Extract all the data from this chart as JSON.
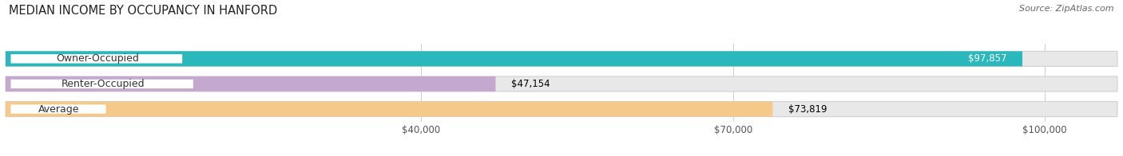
{
  "title": "MEDIAN INCOME BY OCCUPANCY IN HANFORD",
  "source": "Source: ZipAtlas.com",
  "categories": [
    "Owner-Occupied",
    "Renter-Occupied",
    "Average"
  ],
  "values": [
    97857,
    47154,
    73819
  ],
  "bar_colors": [
    "#2ab8bc",
    "#c4a8d0",
    "#f5c98a"
  ],
  "value_labels": [
    "$97,857",
    "$47,154",
    "$73,819"
  ],
  "value_label_colors": [
    "white",
    "black",
    "black"
  ],
  "xlim": [
    0,
    107000
  ],
  "xticks": [
    40000,
    70000,
    100000
  ],
  "xtick_labels": [
    "$40,000",
    "$70,000",
    "$100,000"
  ],
  "title_fontsize": 10.5,
  "source_fontsize": 8,
  "label_fontsize": 9,
  "value_fontsize": 8.5,
  "tick_fontsize": 8.5,
  "bar_height": 0.6,
  "figsize": [
    14.06,
    1.96
  ],
  "dpi": 100,
  "bg_color": "#ffffff",
  "bar_bg_color": "#e8e8e8",
  "grid_color": "#cccccc"
}
